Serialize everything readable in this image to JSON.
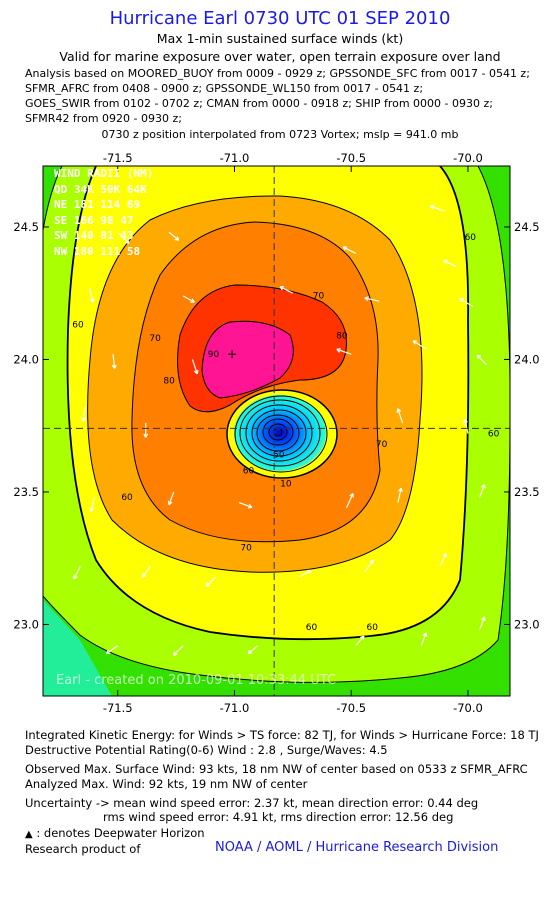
{
  "header": {
    "title": "Hurricane Earl 0730 UTC 01 SEP 2010",
    "subtitle": "Max 1-min sustained surface winds (kt)",
    "validity": "Valid for marine exposure over water, open terrain exposure over land",
    "analysis_lines": [
      "Analysis based on MOORED_BUOY from 0009 - 0929 z; GPSSONDE_SFC from 0017 - 0541 z;",
      "SFMR_AFRC from 0408 - 0900 z; GPSSONDE_WL150 from 0017 - 0541 z;",
      "GOES_SWIR from 0102 - 0702 z; CMAN from 0000 - 0918 z; SHIP from 0000 - 0930 z;",
      "SFMR42 from 0920 - 0930 z;"
    ],
    "position_note": "0730 z position interpolated from 0723 Vortex; mslp = 941.0 mb"
  },
  "wind_radii": {
    "title": "WIND RADII (NM)",
    "rows": [
      "QD  34K  50K  64K",
      "NE  181  114   69",
      "SE  166   98   47",
      "SW  140   81   43",
      "NW  180  111   58"
    ]
  },
  "watermark": "Earl - created on 2010-09-01 10:33:44 UTC",
  "footer": {
    "energy": "Integrated Kinetic Energy:  for Winds > TS force: 82 TJ,  for Winds > Hurricane Force: 18 TJ",
    "destructive": "Destructive Potential Rating(0-6)   Wind : 2.8 , Surge/Waves: 4.5",
    "observed": "Observed Max. Surface Wind: 93 kts, 18 nm NW of center based on 0533 z SFMR_AFRC",
    "analyzed": "Analyzed Max. Wind: 92 kts, 19 nm NW of center",
    "uncertainty_1": "Uncertainty -> mean wind speed error: 2.37 kt,   mean direction error: 0.44 deg",
    "uncertainty_2": "rms wind speed error: 4.91 kt,    rms direction error: 12.56 deg",
    "deepwater": ": denotes Deepwater Horizon",
    "research": "Research product of",
    "credit": "NOAA / AOML / Hurricane Research Division"
  },
  "colors": {
    "title_blue": "#1a1ae6",
    "fill_gt_90": "#ff1493",
    "fill_80_90": "#ff3300",
    "fill_70_80": "#ff8000",
    "fill_64_70": "#ffaa00",
    "fill_60_64": "#ffff00",
    "fill_50_60": "#aaff00",
    "fill_lt_50": "#33e000",
    "fill_lt_40": "#22ee99",
    "eye_core": "#00ccff"
  },
  "chart_data": {
    "type": "contour",
    "xlim": [
      -71.82,
      -69.82
    ],
    "ylim": [
      22.73,
      24.73
    ],
    "x_ticks": [
      -71.5,
      -71.0,
      -70.5,
      -70.0
    ],
    "x_tick_labels": [
      "-71.5",
      "-71.0",
      "-70.5",
      "-70.0"
    ],
    "y_ticks": [
      23.0,
      23.5,
      24.0,
      24.5
    ],
    "y_tick_labels": [
      "23.0",
      "23.5",
      "24.0",
      "24.5"
    ],
    "center": {
      "lon": -70.83,
      "lat": 23.74
    },
    "max_wind_marker": {
      "lon": -71.01,
      "lat": 24.02
    },
    "contour_labels": [
      {
        "text": "60",
        "lon": -69.99,
        "lat": 24.45
      },
      {
        "text": "70",
        "lon": -70.64,
        "lat": 24.23
      },
      {
        "text": "60",
        "lon": -71.67,
        "lat": 24.12
      },
      {
        "text": "70",
        "lon": -71.34,
        "lat": 24.07
      },
      {
        "text": "80",
        "lon": -70.54,
        "lat": 24.08
      },
      {
        "text": "90",
        "lon": -71.09,
        "lat": 24.01
      },
      {
        "text": "80",
        "lon": -71.28,
        "lat": 23.91
      },
      {
        "text": "70",
        "lon": -70.37,
        "lat": 23.67
      },
      {
        "text": "60",
        "lon": -69.89,
        "lat": 23.71
      },
      {
        "text": "60",
        "lon": -71.46,
        "lat": 23.47
      },
      {
        "text": "50",
        "lon": -70.81,
        "lat": 23.63
      },
      {
        "text": "60",
        "lon": -70.94,
        "lat": 23.57
      },
      {
        "text": "10",
        "lon": -70.78,
        "lat": 23.52
      },
      {
        "text": "70",
        "lon": -70.95,
        "lat": 23.28
      },
      {
        "text": "60",
        "lon": -70.67,
        "lat": 22.98
      },
      {
        "text": "60",
        "lon": -70.41,
        "lat": 22.98
      }
    ],
    "wind_vectors": [
      {
        "lon": -71.5,
        "lat": 24.48,
        "u": 0.7,
        "v": -0.7
      },
      {
        "lon": -71.28,
        "lat": 24.48,
        "u": 0.6,
        "v": -0.5
      },
      {
        "lon": -70.1,
        "lat": 24.56,
        "u": -0.9,
        "v": 0.3
      },
      {
        "lon": -70.48,
        "lat": 24.4,
        "u": -0.8,
        "v": 0.4
      },
      {
        "lon": -70.05,
        "lat": 24.35,
        "u": -0.8,
        "v": 0.4
      },
      {
        "lon": -71.62,
        "lat": 24.27,
        "u": 0.2,
        "v": -0.9
      },
      {
        "lon": -71.22,
        "lat": 24.24,
        "u": 0.7,
        "v": -0.4
      },
      {
        "lon": -70.75,
        "lat": 24.25,
        "u": -0.8,
        "v": 0.4
      },
      {
        "lon": -70.38,
        "lat": 24.22,
        "u": -0.9,
        "v": 0.2
      },
      {
        "lon": -69.98,
        "lat": 24.2,
        "u": -0.8,
        "v": 0.5
      },
      {
        "lon": -71.52,
        "lat": 24.02,
        "u": 0.1,
        "v": -0.9
      },
      {
        "lon": -71.18,
        "lat": 24.0,
        "u": 0.3,
        "v": -0.9
      },
      {
        "lon": -70.5,
        "lat": 24.02,
        "u": -0.9,
        "v": 0.3
      },
      {
        "lon": -70.18,
        "lat": 24.04,
        "u": -0.8,
        "v": 0.5
      },
      {
        "lon": -69.92,
        "lat": 23.98,
        "u": -0.6,
        "v": 0.6
      },
      {
        "lon": -71.64,
        "lat": 23.82,
        "u": -0.1,
        "v": -0.9
      },
      {
        "lon": -71.38,
        "lat": 23.76,
        "u": 0.0,
        "v": -0.9
      },
      {
        "lon": -70.28,
        "lat": 23.76,
        "u": -0.3,
        "v": 0.9
      },
      {
        "lon": -70.0,
        "lat": 23.72,
        "u": -0.2,
        "v": 0.9
      },
      {
        "lon": -71.6,
        "lat": 23.48,
        "u": -0.2,
        "v": -0.9
      },
      {
        "lon": -71.26,
        "lat": 23.5,
        "u": -0.3,
        "v": -0.8
      },
      {
        "lon": -70.98,
        "lat": 23.46,
        "u": 0.8,
        "v": -0.3
      },
      {
        "lon": -70.52,
        "lat": 23.44,
        "u": 0.4,
        "v": 0.9
      },
      {
        "lon": -70.3,
        "lat": 23.46,
        "u": 0.2,
        "v": 0.9
      },
      {
        "lon": -69.95,
        "lat": 23.48,
        "u": 0.3,
        "v": 0.8
      },
      {
        "lon": -71.66,
        "lat": 23.22,
        "u": -0.4,
        "v": -0.8
      },
      {
        "lon": -71.36,
        "lat": 23.22,
        "u": -0.5,
        "v": -0.7
      },
      {
        "lon": -71.08,
        "lat": 23.18,
        "u": -0.6,
        "v": -0.6
      },
      {
        "lon": -70.72,
        "lat": 23.18,
        "u": 0.7,
        "v": 0.4
      },
      {
        "lon": -70.44,
        "lat": 23.2,
        "u": 0.5,
        "v": 0.7
      },
      {
        "lon": -70.12,
        "lat": 23.22,
        "u": 0.4,
        "v": 0.8
      },
      {
        "lon": -71.5,
        "lat": 22.92,
        "u": -0.7,
        "v": -0.5
      },
      {
        "lon": -71.22,
        "lat": 22.92,
        "u": -0.6,
        "v": -0.6
      },
      {
        "lon": -70.9,
        "lat": 22.92,
        "u": -0.6,
        "v": -0.5
      },
      {
        "lon": -70.48,
        "lat": 22.92,
        "u": 0.5,
        "v": 0.6
      },
      {
        "lon": -70.2,
        "lat": 22.92,
        "u": 0.3,
        "v": 0.8
      },
      {
        "lon": -69.95,
        "lat": 22.98,
        "u": 0.3,
        "v": 0.8
      }
    ]
  }
}
